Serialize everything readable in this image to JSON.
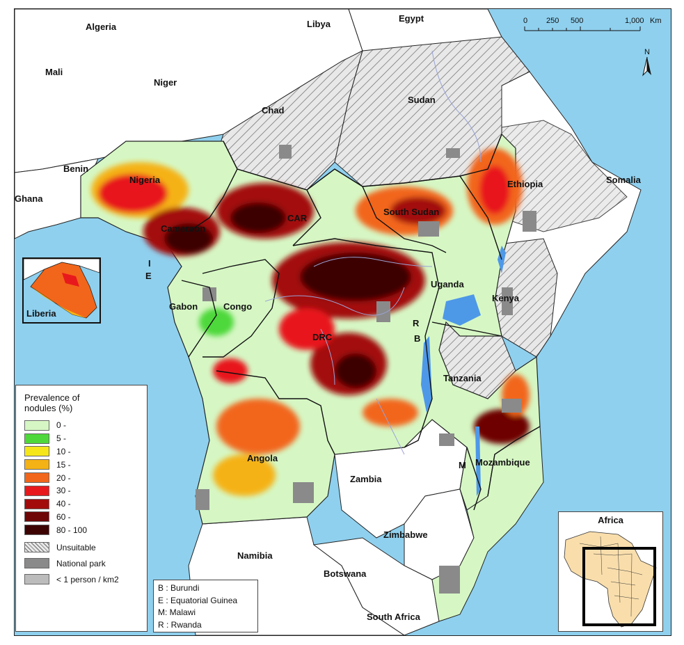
{
  "colors": {
    "sea": "#8fd0ee",
    "land_other": "#ffffff",
    "unsuitable": "#e6e6e6",
    "national_park": "#8a8a8a",
    "low_density": "#bcbcbc",
    "c0": "#d6f7c4",
    "c5": "#4ed83a",
    "c10": "#f5e61a",
    "c15": "#f5b215",
    "c20": "#f2661b",
    "c30": "#e8191c",
    "c40": "#a30b0b",
    "c60": "#6e0606",
    "c80": "#3d0303"
  },
  "countries": {
    "algeria": "Algeria",
    "libya": "Libya",
    "egypt": "Egypt",
    "mali": "Mali",
    "niger": "Niger",
    "chad": "Chad",
    "sudan": "Sudan",
    "benin": "Benin",
    "ghana": "Ghana",
    "nigeria": "Nigeria",
    "cameroon": "Cameroon",
    "car": "CAR",
    "south_sudan": "South Sudan",
    "ethiopia": "Ethiopia",
    "somalia": "Somalia",
    "uganda": "Uganda",
    "kenya": "Kenya",
    "gabon": "Gabon",
    "congo": "Congo",
    "drc": "DRC",
    "tanzania": "Tanzania",
    "angola": "Angola",
    "zambia": "Zambia",
    "mozambique": "Mozambique",
    "zimbabwe": "Zimbabwe",
    "namibia": "Namibia",
    "botswana": "Botswana",
    "south_africa": "South Africa",
    "liberia": "Liberia",
    "mark_i": "I",
    "mark_e": "E",
    "mark_r": "R",
    "mark_b": "B",
    "mark_m": "M"
  },
  "legend": {
    "title_line1": "Prevalence of",
    "title_line2": "nodules (%)",
    "classes": [
      {
        "label": "0 -",
        "color": "#d6f7c4"
      },
      {
        "label": "5 -",
        "color": "#4ed83a"
      },
      {
        "label": "10 -",
        "color": "#f5e61a"
      },
      {
        "label": "15 -",
        "color": "#f5b215"
      },
      {
        "label": "20 -",
        "color": "#f2661b"
      },
      {
        "label": "30 -",
        "color": "#e8191c"
      },
      {
        "label": "40 -",
        "color": "#a30b0b"
      },
      {
        "label": "60 -",
        "color": "#6e0606"
      },
      {
        "label": "80 - 100",
        "color": "#3d0303"
      }
    ],
    "unsuitable": "Unsuitable",
    "national_park": "National park",
    "low_density": "< 1 person / km2"
  },
  "abbreviations": [
    "B : Burundi",
    "E : Equatorial Guinea",
    "M: Malawi",
    "R : Rwanda"
  ],
  "scalebar": {
    "ticks": [
      "0",
      "250",
      "500",
      "1,000"
    ],
    "unit": "Km",
    "north": "N"
  },
  "inset": {
    "title": "Africa"
  }
}
